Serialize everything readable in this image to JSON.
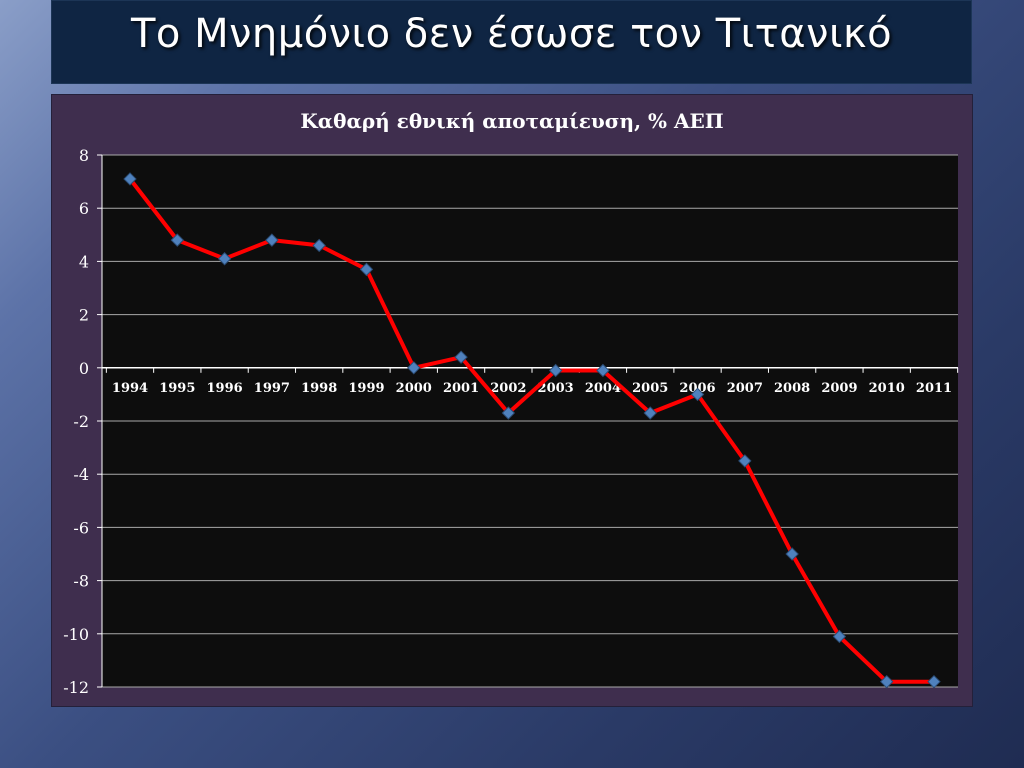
{
  "slide": {
    "title": "Το Μνημόνιο δεν έσωσε τον Τιτανικό"
  },
  "colors": {
    "background": "#3a4d80",
    "title_bar": "#0f2543",
    "chart_frame": "#3f2e4e",
    "plot_area": "#0d0d0d",
    "gridline": "#a9a9a9",
    "line": "#ff0000",
    "marker": "#4f81bd"
  },
  "chart_data": {
    "type": "line",
    "title": "Καθαρή εθνική αποταμίευση, % ΑΕΠ",
    "xlabel": "",
    "ylabel": "",
    "categories": [
      "1994",
      "1995",
      "1996",
      "1997",
      "1998",
      "1999",
      "2000",
      "2001",
      "2002",
      "2003",
      "2004",
      "2005",
      "2006",
      "2007",
      "2008",
      "2009",
      "2010",
      "2011"
    ],
    "series": [
      {
        "values": [
          7.1,
          4.8,
          4.1,
          4.8,
          4.6,
          3.7,
          0.0,
          0.4,
          -1.7,
          -0.1,
          -0.1,
          -1.7,
          -1.0,
          -3.5,
          -7.0,
          -10.1,
          -11.8,
          -11.8
        ]
      }
    ],
    "ylim": [
      -12,
      8
    ],
    "yticks": [
      "8",
      "6",
      "4",
      "2",
      "0",
      "-2",
      "-4",
      "-6",
      "-8",
      "-10",
      "-12"
    ],
    "grid": true,
    "legend": "none",
    "marker": "diamond"
  }
}
